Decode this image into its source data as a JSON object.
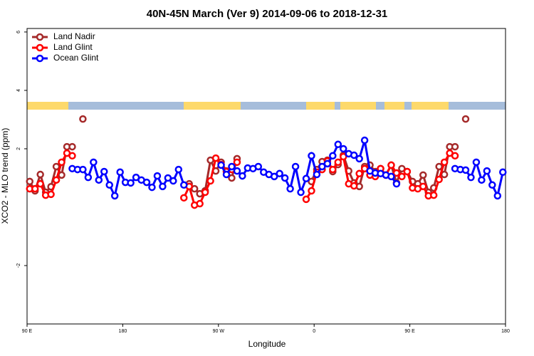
{
  "chart_data": {
    "type": "line",
    "title": "40N-45N March (Ver 9)   2014-09-06 to 2018-12-31",
    "x_label": "Longitude",
    "y_label": "XCO2 - MLO trend (ppm)",
    "xlim": [
      90,
      540
    ],
    "ylim": [
      -4,
      6.12
    ],
    "xticks": [
      {
        "value": 90,
        "label": "90 E"
      },
      {
        "value": 180,
        "label": "180"
      },
      {
        "value": 270,
        "label": "90 W"
      },
      {
        "value": 360,
        "label": "0"
      },
      {
        "value": 450,
        "label": "90 E"
      },
      {
        "value": 540,
        "label": "180"
      }
    ],
    "yticks": [
      -2,
      2,
      4,
      6
    ],
    "legend": "top-left",
    "x": [
      92.5,
      97.5,
      102.5,
      107.5,
      112.5,
      117.5,
      122.5,
      127.5,
      132.5,
      137.5,
      142.5,
      147.5,
      152.5,
      157.5,
      162.5,
      167.5,
      172.5,
      177.5,
      182.5,
      187.5,
      192.5,
      197.5,
      202.5,
      207.5,
      212.5,
      217.5,
      222.5,
      227.5,
      232.5,
      237.5,
      242.5,
      247.5,
      252.5,
      257.5,
      262.5,
      267.5,
      272.5,
      277.5,
      282.5,
      287.5,
      292.5,
      297.5,
      302.5,
      307.5,
      312.5,
      317.5,
      322.5,
      327.5,
      332.5,
      337.5,
      342.5,
      347.5,
      352.5,
      357.5,
      362.5,
      367.5,
      372.5,
      377.5,
      382.5,
      387.5,
      392.5,
      397.5,
      402.5,
      407.5,
      412.5,
      417.5,
      422.5,
      427.5,
      432.5,
      437.5,
      442.5,
      447.5,
      452.5,
      457.5,
      462.5,
      467.5,
      472.5,
      477.5,
      482.5,
      487.5,
      492.5,
      497.5,
      502.5,
      507.5,
      512.5,
      517.5,
      522.5,
      527.5,
      532.5,
      537.5
    ],
    "series": [
      {
        "name": "Land Nadir",
        "color": "#a52a2a",
        "values": [
          0.88,
          0.56,
          1.12,
          0.51,
          0.7,
          1.39,
          1.1,
          2.07,
          2.07,
          null,
          3.02,
          null,
          null,
          null,
          null,
          null,
          null,
          null,
          null,
          null,
          null,
          null,
          null,
          null,
          null,
          null,
          null,
          null,
          null,
          null,
          0.8,
          0.63,
          0.46,
          0.56,
          1.61,
          1.24,
          1.54,
          1.24,
          1.0,
          1.66,
          null,
          null,
          null,
          null,
          null,
          null,
          null,
          null,
          null,
          null,
          null,
          null,
          null,
          0.88,
          1.29,
          1.56,
          1.61,
          1.22,
          1.46,
          1.78,
          1.24,
          0.83,
          0.71,
          1.39,
          1.44,
          1.22,
          1.32,
          1.1,
          1.44,
          0.83,
          1.32,
          1.22,
          0.88,
          0.8,
          1.1,
          0.51,
          0.66,
          1.39,
          1.12,
          2.07,
          2.07,
          null,
          3.02,
          null,
          null,
          null,
          null,
          null,
          null,
          null
        ]
      },
      {
        "name": "Land Glint",
        "color": "#ff0000",
        "values": [
          0.63,
          0.63,
          0.8,
          0.41,
          0.44,
          0.93,
          1.54,
          1.85,
          1.76,
          null,
          null,
          null,
          null,
          null,
          null,
          null,
          null,
          null,
          null,
          null,
          null,
          null,
          null,
          null,
          null,
          null,
          null,
          null,
          null,
          0.32,
          0.71,
          0.07,
          0.12,
          0.51,
          0.9,
          1.68,
          1.46,
          1.22,
          1.29,
          1.54,
          null,
          null,
          null,
          null,
          null,
          null,
          null,
          null,
          null,
          null,
          null,
          null,
          0.27,
          0.56,
          1.2,
          1.29,
          1.58,
          1.29,
          1.54,
          1.73,
          0.8,
          0.73,
          1.15,
          1.32,
          1.1,
          1.05,
          1.32,
          1.1,
          1.44,
          1.17,
          1.05,
          1.22,
          0.66,
          0.63,
          0.71,
          0.39,
          0.41,
          0.95,
          1.54,
          1.85,
          1.76,
          null,
          null,
          null,
          null,
          null,
          null,
          null,
          null,
          null
        ]
      },
      {
        "name": "Ocean Glint",
        "color": "#0000ff",
        "values": [
          null,
          null,
          null,
          null,
          null,
          null,
          null,
          null,
          1.32,
          1.29,
          1.29,
          1.02,
          1.54,
          0.93,
          1.22,
          0.76,
          0.39,
          1.2,
          0.85,
          0.83,
          1.02,
          0.93,
          0.85,
          0.68,
          1.07,
          0.71,
          1.0,
          0.9,
          1.29,
          0.76,
          null,
          null,
          null,
          null,
          null,
          null,
          1.44,
          1.12,
          1.39,
          1.24,
          1.07,
          1.34,
          1.32,
          1.39,
          1.2,
          1.12,
          1.05,
          1.15,
          1.0,
          0.63,
          1.39,
          0.51,
          0.98,
          1.76,
          1.12,
          1.39,
          1.49,
          1.76,
          2.15,
          2.0,
          1.83,
          1.78,
          1.66,
          2.29,
          1.24,
          1.17,
          1.15,
          1.1,
          1.05,
          0.8,
          null,
          null,
          null,
          null,
          null,
          null,
          null,
          null,
          null,
          null,
          1.32,
          1.29,
          1.27,
          1.02,
          1.54,
          0.93,
          1.24,
          0.76,
          0.39,
          1.2
        ]
      }
    ]
  }
}
